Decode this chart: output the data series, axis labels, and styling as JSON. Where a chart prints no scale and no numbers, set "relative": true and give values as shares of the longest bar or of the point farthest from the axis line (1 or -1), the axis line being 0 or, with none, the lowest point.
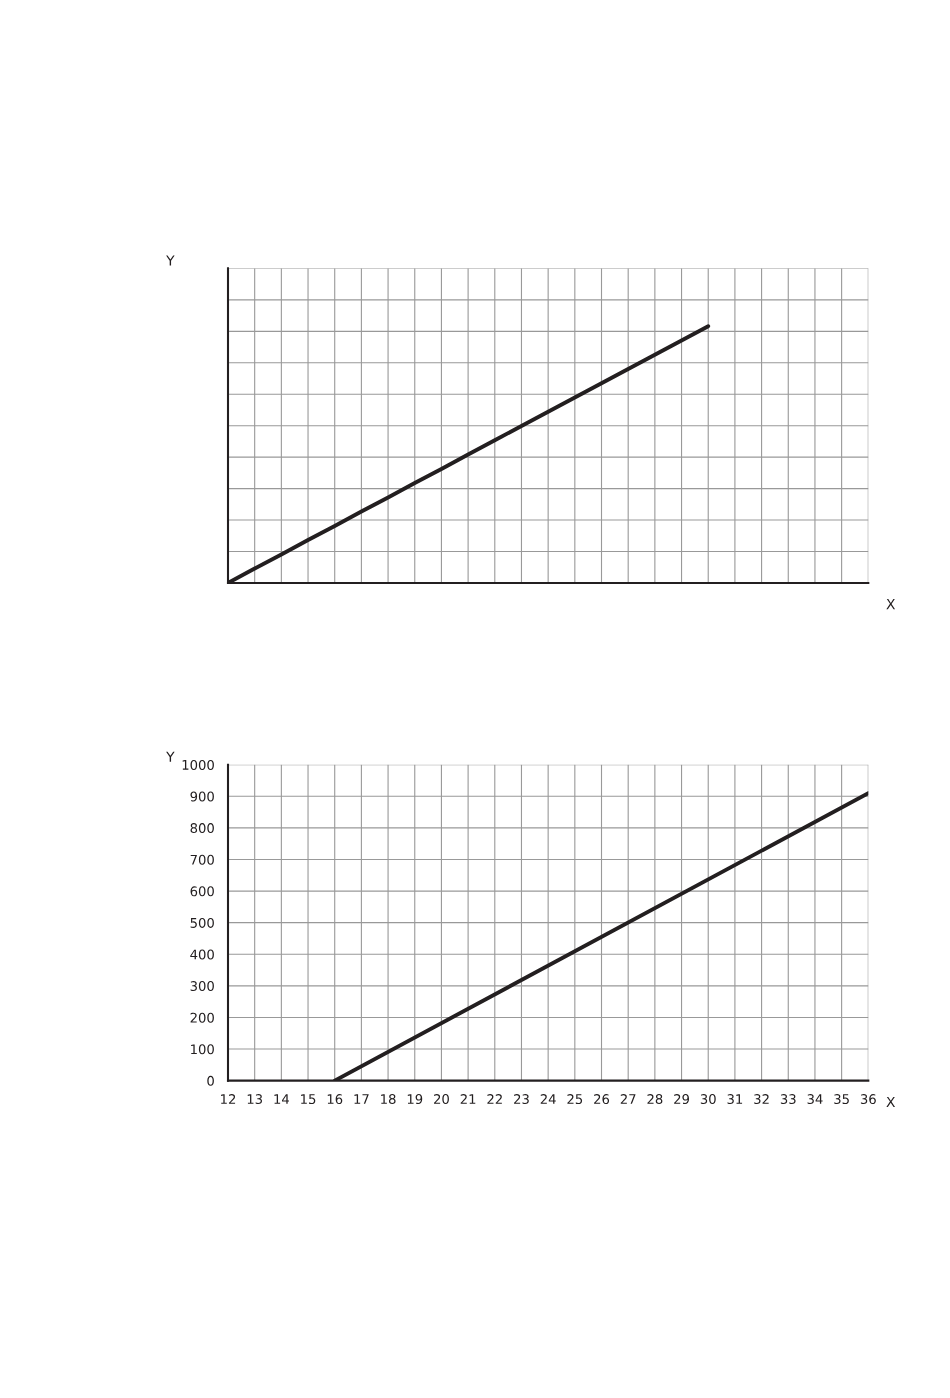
{
  "chart_data": [
    {
      "type": "line",
      "xlabel": "X",
      "ylabel": "Y",
      "relative": true,
      "grid": true,
      "color": "#231f20",
      "categories": [
        null,
        null,
        null,
        null,
        null,
        null,
        null,
        null,
        null,
        null,
        null,
        null,
        null,
        null,
        null,
        null,
        null,
        null,
        null,
        null,
        null,
        null,
        null,
        null,
        null
      ],
      "values": [
        0,
        0.056,
        0.111,
        0.167,
        0.222,
        0.278,
        0.333,
        0.389,
        0.444,
        0.5,
        0.556,
        0.611,
        0.667,
        0.722,
        0.778,
        0.833,
        0.889,
        0.944,
        1,
        null,
        null,
        null,
        null,
        null,
        null
      ]
    },
    {
      "type": "line",
      "xlabel": "X",
      "ylabel": "Y",
      "grid": true,
      "color": "#231f20",
      "x": [
        16,
        36
      ],
      "values": [
        0,
        910
      ],
      "xlim": [
        12,
        36
      ],
      "xticks": [
        12,
        13,
        14,
        15,
        16,
        17,
        18,
        19,
        20,
        21,
        22,
        23,
        24,
        25,
        26,
        27,
        28,
        29,
        30,
        31,
        32,
        33,
        34,
        35,
        36
      ],
      "ylim": [
        0,
        1000
      ],
      "yticks": [
        0,
        100,
        200,
        300,
        400,
        500,
        600,
        700,
        800,
        900,
        1000
      ]
    }
  ]
}
